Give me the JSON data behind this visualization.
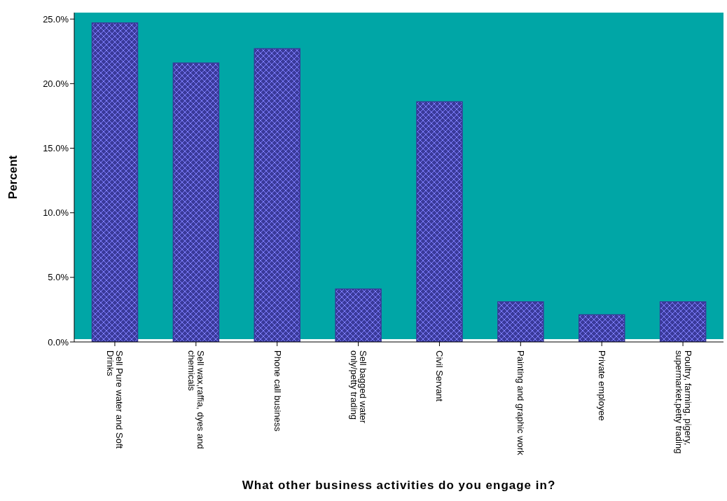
{
  "chart_data": {
    "type": "bar",
    "xlabel": "What other business activities do you engage in?",
    "ylabel": "Percent",
    "categories": [
      "Sell Pure water and Soft Drinks",
      "Sell wax,raffia, dyes and chemicals",
      "Phone call business",
      "Sell bagged water only/petty trading",
      "Civil Servant",
      "Painting and graphic work",
      "Private employee",
      "Poultry, farming, pigery, supermarket,petty trading"
    ],
    "values": [
      24.7,
      21.6,
      22.7,
      4.1,
      18.6,
      3.1,
      2.1,
      3.1
    ],
    "color": "#3a3a9a",
    "ylim": [
      0,
      25.5
    ],
    "yticks": [
      {
        "value": 0,
        "label": "0.0%"
      },
      {
        "value": 5,
        "label": "5.0%"
      },
      {
        "value": 10,
        "label": "10.0%"
      },
      {
        "value": 15,
        "label": "15.0%"
      },
      {
        "value": 20,
        "label": "20.0%"
      },
      {
        "value": 25,
        "label": "25.0%"
      }
    ],
    "grid": false,
    "legend": false
  }
}
